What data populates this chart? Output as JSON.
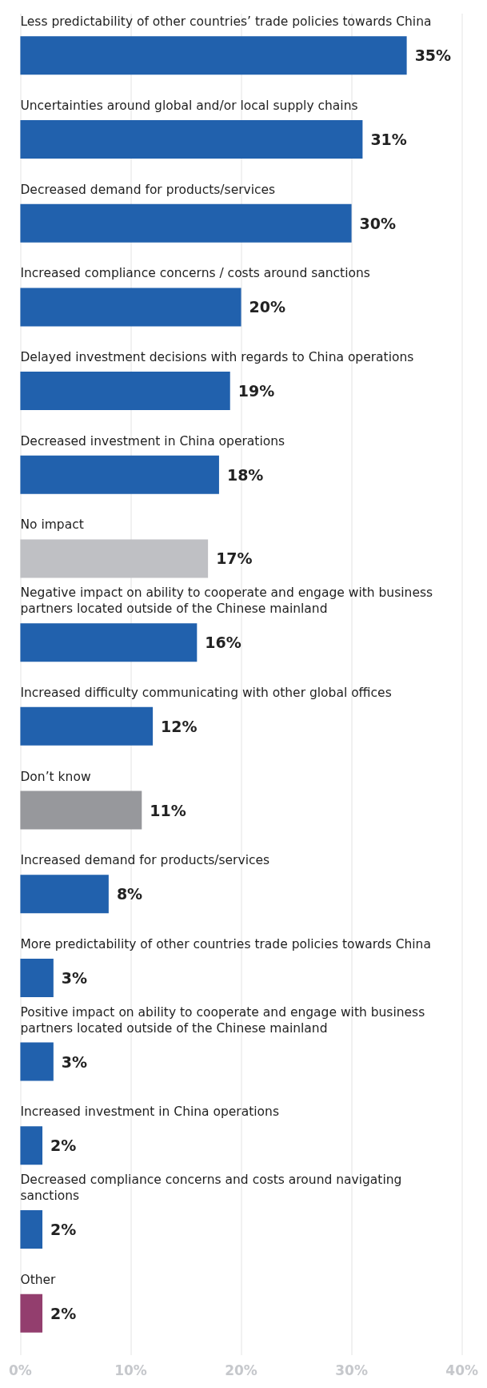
{
  "chart_data": {
    "type": "bar",
    "orientation": "horizontal",
    "categories": [
      "Less predictability of other countries’ trade policies towards China",
      "Uncertainties around global and/or local supply chains",
      "Decreased demand for products/services",
      "Increased compliance concerns / costs around sanctions",
      "Delayed investment decisions with regards to China operations",
      "Decreased investment in China operations",
      "No impact",
      "Negative impact on ability to cooperate and engage with business partners located outside of the Chinese mainland",
      "Increased difficulty communicating with other global offices",
      "Don’t know",
      "Increased demand for products/services",
      "More predictability of other countries trade policies towards China",
      "Positive impact on ability to cooperate and engage with business partners located outside of the Chinese mainland",
      "Increased investment in China operations",
      "Decreased compliance concerns and costs around navigating sanctions",
      "Other"
    ],
    "values": [
      35,
      31,
      30,
      20,
      19,
      18,
      17,
      16,
      12,
      11,
      8,
      3,
      3,
      2,
      2,
      2
    ],
    "value_labels": [
      "35%",
      "31%",
      "30%",
      "20%",
      "19%",
      "18%",
      "17%",
      "16%",
      "12%",
      "11%",
      "8%",
      "3%",
      "3%",
      "2%",
      "2%",
      "2%"
    ],
    "colors": [
      "#2161ad",
      "#2161ad",
      "#2161ad",
      "#2161ad",
      "#2161ad",
      "#2161ad",
      "#bfc0c4",
      "#2161ad",
      "#2161ad",
      "#97989c",
      "#2161ad",
      "#2161ad",
      "#2161ad",
      "#2161ad",
      "#2161ad",
      "#933e6e"
    ],
    "xlim": [
      0,
      40
    ],
    "xticks": [
      {
        "value": 0,
        "label": "0%"
      },
      {
        "value": 10,
        "label": "10%"
      },
      {
        "value": 20,
        "label": "20%"
      },
      {
        "value": 30,
        "label": "30%"
      },
      {
        "value": 40,
        "label": "40%"
      }
    ],
    "grid": "x"
  }
}
